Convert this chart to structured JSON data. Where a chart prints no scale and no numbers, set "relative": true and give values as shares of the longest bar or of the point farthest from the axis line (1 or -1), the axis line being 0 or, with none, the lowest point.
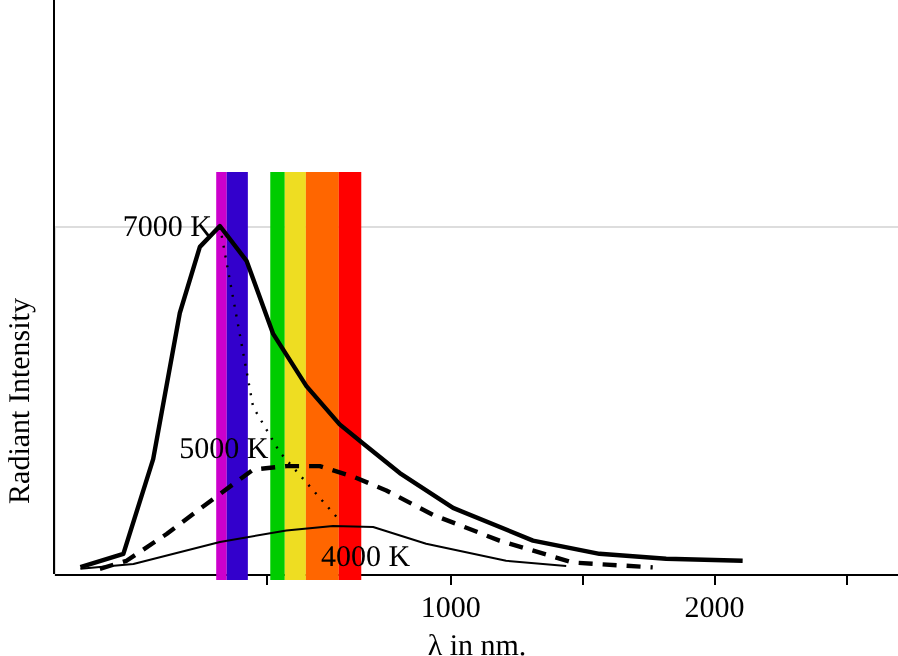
{
  "chart_data": {
    "type": "line",
    "relative": true,
    "xlabel": "λ   in nm.",
    "ylabel": "Radiant Intensity",
    "xlim": [
      -500,
      2700
    ],
    "xticks": [
      {
        "value": 300,
        "label": null
      },
      1000,
      {
        "value": 1500,
        "label": null
      },
      2000,
      {
        "value": 2500,
        "label": null
      }
    ],
    "grid": false,
    "series": [
      {
        "name": "7000 K",
        "color": "#000000",
        "line_style": "solid",
        "x": [
          -400,
          -237,
          -124,
          -23,
          53,
          129,
          230,
          331,
          457,
          583,
          672,
          811,
          1013,
          1316,
          1568,
          1821,
          2111
        ],
        "values": [
          0.02,
          0.058,
          0.33,
          0.75,
          0.94,
          1,
          0.9,
          0.69,
          0.54,
          0.43,
          0.375,
          0.29,
          0.19,
          0.096,
          0.058,
          0.044,
          0.038
        ]
      },
      {
        "name": "5000 K",
        "color": "#000000",
        "line_style": "dashed",
        "x": [
          -326,
          -225,
          -73,
          129,
          255,
          381,
          508,
          634,
          760,
          937,
          1189,
          1467,
          1770
        ],
        "values": [
          0.015,
          0.038,
          0.115,
          0.23,
          0.3,
          0.31,
          0.31,
          0.28,
          0.24,
          0.17,
          0.096,
          0.033,
          0.019
        ]
      },
      {
        "name": "4000 K",
        "color": "#000000",
        "line_style": "solid",
        "x": [
          -400,
          -199,
          129,
          381,
          558,
          710,
          911,
          1214,
          1442
        ],
        "values": [
          0.015,
          0.029,
          0.092,
          0.125,
          0.138,
          0.135,
          0.087,
          0.038,
          0.023
        ]
      },
      {
        "color": "#000000",
        "line_style": "dotted",
        "x": [
          129,
          255,
          356,
          583
        ],
        "values": [
          1,
          0.48,
          0.35,
          0.154
        ]
      }
    ],
    "bands": [
      {
        "axis": "x",
        "from": 115,
        "to": 155,
        "color": "#cc00cc"
      },
      {
        "axis": "x",
        "from": 155,
        "to": 235,
        "color": "#3300cc"
      },
      {
        "axis": "x",
        "from": 320,
        "to": 375,
        "color": "#00cc00"
      },
      {
        "axis": "x",
        "from": 375,
        "to": 455,
        "color": "#eedd22"
      },
      {
        "axis": "x",
        "from": 455,
        "to": 580,
        "color": "#ff6600"
      },
      {
        "axis": "x",
        "from": 580,
        "to": 665,
        "color": "#ff0000"
      }
    ]
  }
}
